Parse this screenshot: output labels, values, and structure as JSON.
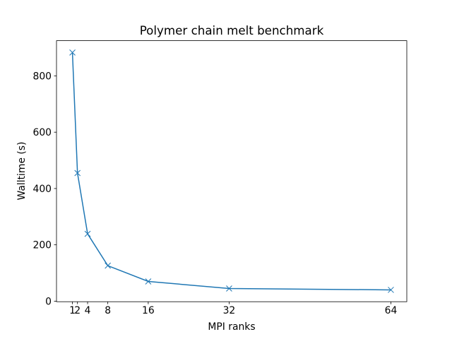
{
  "chart_data": {
    "type": "line",
    "title": "Polymer chain melt benchmark",
    "x_label": "MPI ranks",
    "y_label": "Walltime (s)",
    "x": [
      1,
      2,
      4,
      8,
      16,
      32,
      64
    ],
    "series": [
      {
        "color": "#1f77b4",
        "marker": "x",
        "values": [
          883,
          455,
          239,
          126,
          70,
          45,
          40
        ]
      }
    ],
    "xlim": [
      -2.15,
      67.15
    ],
    "xticks": [
      1,
      2,
      4,
      8,
      16,
      32,
      64
    ],
    "ylim": [
      -2,
      925
    ],
    "yticks": [
      0,
      200,
      400,
      600,
      800
    ],
    "grid": false
  }
}
